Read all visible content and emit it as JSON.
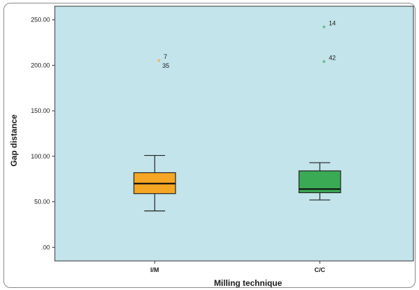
{
  "chart_data": {
    "type": "boxplot",
    "xlabel": "Milling technique",
    "ylabel": "Gap distance",
    "ylim": [
      -15,
      265
    ],
    "yticks": [
      {
        "value": 0,
        "label": ".00"
      },
      {
        "value": 50,
        "label": "50.00"
      },
      {
        "value": 100,
        "label": "100.00"
      },
      {
        "value": 150,
        "label": "150.00"
      },
      {
        "value": 200,
        "label": "200.00"
      },
      {
        "value": 250,
        "label": "250.00"
      }
    ],
    "categories": [
      "I/M",
      "C/C"
    ],
    "boxes": [
      {
        "category": "I/M",
        "color": "#f5a623",
        "whisker_low": 40,
        "q1": 59,
        "median": 70,
        "q3": 82,
        "whisker_high": 101,
        "outliers": [
          {
            "value": 204,
            "labels": [
              "7",
              "35"
            ],
            "marker": "*"
          }
        ]
      },
      {
        "category": "C/C",
        "color": "#3aaa55",
        "whisker_low": 52,
        "q1": 60,
        "median": 64,
        "q3": 84,
        "whisker_high": 93,
        "outliers": [
          {
            "value": 241,
            "labels": [
              "14"
            ],
            "marker": "*"
          },
          {
            "value": 203,
            "labels": [
              "42"
            ],
            "marker": "*"
          }
        ]
      }
    ],
    "plot_background": "#c2e4ea",
    "grid": false,
    "legend": "none"
  }
}
